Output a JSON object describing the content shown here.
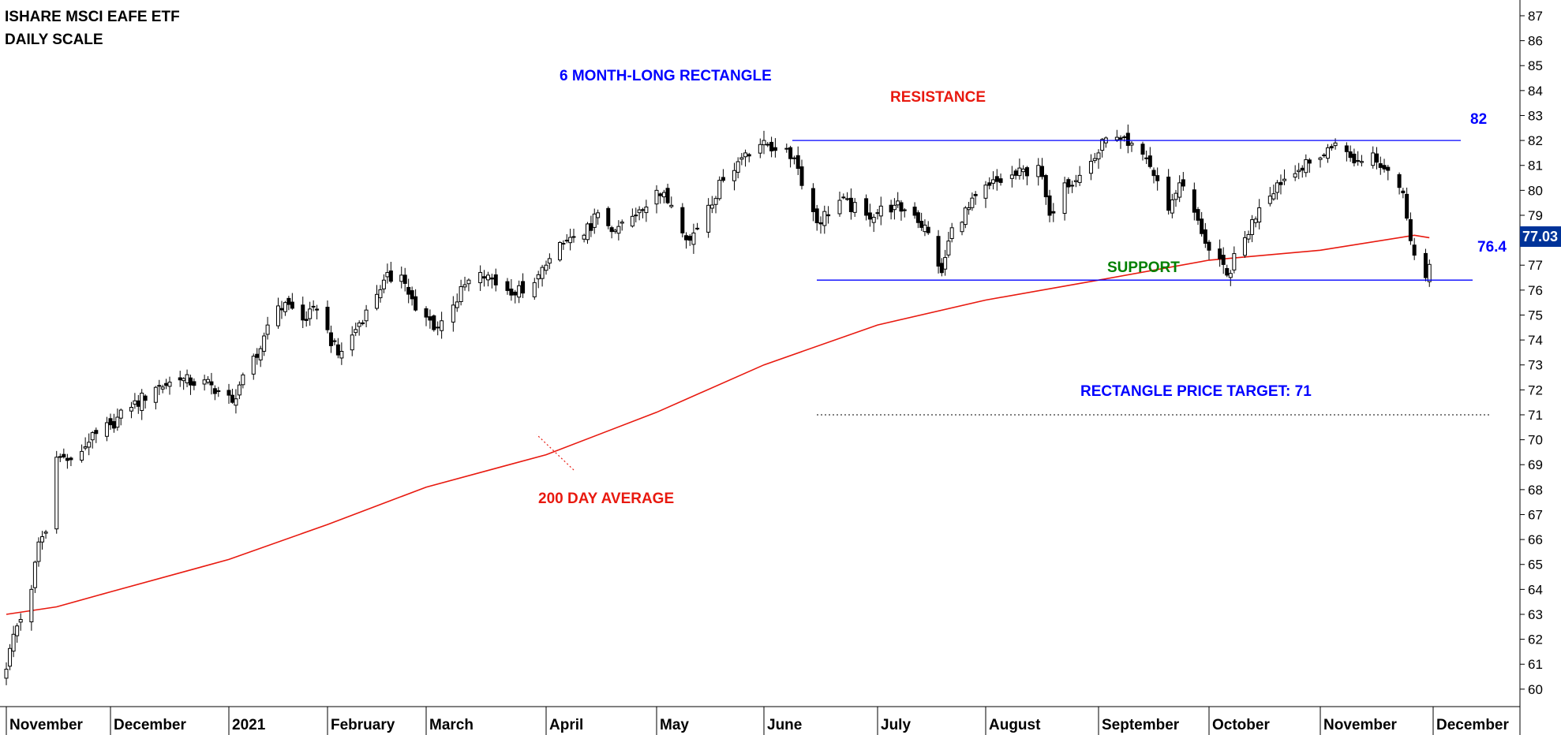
{
  "header": {
    "line1": "ISHARE MSCI EAFE ETF",
    "line2": "DAILY SCALE"
  },
  "annotations": {
    "rectangle": "6 MONTH-LONG RECTANGLE",
    "resistance": "RESISTANCE",
    "support": "SUPPORT",
    "target": "RECTANGLE PRICE TARGET: 71",
    "ma": "200 DAY AVERAGE",
    "resistance_value": "82",
    "support_value": "76.4",
    "last_price": "77.03"
  },
  "colors": {
    "candle": "#000000",
    "ma_line": "#e8190f",
    "levels": "#0000ff",
    "support_text": "#008000",
    "price_tag": "#003399"
  },
  "chart_data": {
    "type": "candlestick",
    "title": "ISHARE MSCI EAFE ETF",
    "subtitle": "DAILY SCALE",
    "ylim": [
      59.3,
      87.6
    ],
    "y_ticks": [
      60,
      61,
      62,
      63,
      64,
      65,
      66,
      67,
      68,
      69,
      70,
      71,
      72,
      73,
      74,
      75,
      76,
      77,
      78,
      79,
      80,
      81,
      82,
      83,
      84,
      85,
      86,
      87
    ],
    "x_tick_labels": [
      "November",
      "December",
      "2021",
      "February",
      "March",
      "April",
      "May",
      "June",
      "July",
      "August",
      "September",
      "October",
      "November",
      "December"
    ],
    "last_price": 77.03,
    "levels": [
      {
        "name": "Resistance",
        "value": 82
      },
      {
        "name": "Support",
        "value": 76.4
      },
      {
        "name": "Rectangle price target",
        "value": 71
      }
    ],
    "series": [
      {
        "name": "200 DAY AVERAGE",
        "type": "line",
        "points": [
          {
            "date": "2020-11-02",
            "value": 63.0
          },
          {
            "date": "2020-11-16",
            "value": 63.3
          },
          {
            "date": "2020-12-01",
            "value": 63.9
          },
          {
            "date": "2021-01-04",
            "value": 65.2
          },
          {
            "date": "2021-02-01",
            "value": 66.6
          },
          {
            "date": "2021-03-01",
            "value": 68.1
          },
          {
            "date": "2021-04-01",
            "value": 69.4
          },
          {
            "date": "2021-05-03",
            "value": 71.1
          },
          {
            "date": "2021-06-01",
            "value": 73.0
          },
          {
            "date": "2021-07-01",
            "value": 74.6
          },
          {
            "date": "2021-08-02",
            "value": 75.6
          },
          {
            "date": "2021-09-01",
            "value": 76.4
          },
          {
            "date": "2021-10-01",
            "value": 77.2
          },
          {
            "date": "2021-11-01",
            "value": 77.6
          },
          {
            "date": "2021-11-26",
            "value": 78.2
          },
          {
            "date": "2021-11-30",
            "value": 78.1
          }
        ]
      },
      {
        "name": "Price (daily close)",
        "type": "candlestick",
        "points": [
          {
            "date": "2020-11-02",
            "close": 60.8
          },
          {
            "date": "2020-11-04",
            "close": 62.2
          },
          {
            "date": "2020-11-09",
            "close": 64.0
          },
          {
            "date": "2020-11-11",
            "close": 65.9
          },
          {
            "date": "2020-11-13",
            "close": 66.3
          },
          {
            "date": "2020-11-16",
            "close": 69.3
          },
          {
            "date": "2020-11-20",
            "close": 69.2
          },
          {
            "date": "2020-11-25",
            "close": 69.9
          },
          {
            "date": "2020-12-01",
            "close": 70.6
          },
          {
            "date": "2020-12-07",
            "close": 71.3
          },
          {
            "date": "2020-12-14",
            "close": 72.1
          },
          {
            "date": "2020-12-21",
            "close": 72.4
          },
          {
            "date": "2020-12-30",
            "close": 72.2
          },
          {
            "date": "2021-01-05",
            "close": 71.5
          },
          {
            "date": "2021-01-08",
            "close": 72.6
          },
          {
            "date": "2021-01-12",
            "close": 73.3
          },
          {
            "date": "2021-01-15",
            "close": 74.6
          },
          {
            "date": "2021-01-20",
            "close": 75.5
          },
          {
            "date": "2021-01-25",
            "close": 74.8
          },
          {
            "date": "2021-01-29",
            "close": 75.2
          },
          {
            "date": "2021-02-04",
            "close": 73.4
          },
          {
            "date": "2021-02-08",
            "close": 74.2
          },
          {
            "date": "2021-02-12",
            "close": 75.2
          },
          {
            "date": "2021-02-17",
            "close": 76.4
          },
          {
            "date": "2021-02-22",
            "close": 76.6
          },
          {
            "date": "2021-02-26",
            "close": 75.2
          },
          {
            "date": "2021-03-04",
            "close": 74.5
          },
          {
            "date": "2021-03-08",
            "close": 75.4
          },
          {
            "date": "2021-03-12",
            "close": 76.4
          },
          {
            "date": "2021-03-17",
            "close": 76.6
          },
          {
            "date": "2021-03-23",
            "close": 75.8
          },
          {
            "date": "2021-03-29",
            "close": 76.3
          },
          {
            "date": "2021-04-01",
            "close": 77.0
          },
          {
            "date": "2021-04-07",
            "close": 78.0
          },
          {
            "date": "2021-04-12",
            "close": 78.2
          },
          {
            "date": "2021-04-16",
            "close": 79.1
          },
          {
            "date": "2021-04-21",
            "close": 78.4
          },
          {
            "date": "2021-04-27",
            "close": 79.0
          },
          {
            "date": "2021-05-03",
            "close": 80.0
          },
          {
            "date": "2021-05-07",
            "close": 79.4
          },
          {
            "date": "2021-05-12",
            "close": 78.0
          },
          {
            "date": "2021-05-17",
            "close": 79.4
          },
          {
            "date": "2021-05-21",
            "close": 80.4
          },
          {
            "date": "2021-05-27",
            "close": 81.5
          },
          {
            "date": "2021-06-01",
            "close": 82.0
          },
          {
            "date": "2021-06-04",
            "close": 81.6
          },
          {
            "date": "2021-06-09",
            "close": 81.3
          },
          {
            "date": "2021-06-15",
            "close": 78.7
          },
          {
            "date": "2021-06-21",
            "close": 79.6
          },
          {
            "date": "2021-06-28",
            "close": 79.0
          },
          {
            "date": "2021-07-06",
            "close": 79.4
          },
          {
            "date": "2021-07-12",
            "close": 79.0
          },
          {
            "date": "2021-07-16",
            "close": 78.3
          },
          {
            "date": "2021-07-20",
            "close": 76.7
          },
          {
            "date": "2021-07-23",
            "close": 78.5
          },
          {
            "date": "2021-07-28",
            "close": 79.3
          },
          {
            "date": "2021-08-03",
            "close": 80.2
          },
          {
            "date": "2021-08-10",
            "close": 80.6
          },
          {
            "date": "2021-08-16",
            "close": 81.0
          },
          {
            "date": "2021-08-19",
            "close": 79.0
          },
          {
            "date": "2021-08-23",
            "close": 80.3
          },
          {
            "date": "2021-08-27",
            "close": 80.6
          },
          {
            "date": "2021-09-01",
            "close": 81.5
          },
          {
            "date": "2021-09-03",
            "close": 82.1
          },
          {
            "date": "2021-09-09",
            "close": 81.8
          },
          {
            "date": "2021-09-14",
            "close": 81.3
          },
          {
            "date": "2021-09-20",
            "close": 79.2
          },
          {
            "date": "2021-09-23",
            "close": 80.3
          },
          {
            "date": "2021-09-28",
            "close": 78.8
          },
          {
            "date": "2021-10-01",
            "close": 77.6
          },
          {
            "date": "2021-10-06",
            "close": 76.6
          },
          {
            "date": "2021-10-11",
            "close": 78.1
          },
          {
            "date": "2021-10-15",
            "close": 79.3
          },
          {
            "date": "2021-10-20",
            "close": 80.3
          },
          {
            "date": "2021-10-26",
            "close": 80.8
          },
          {
            "date": "2021-11-01",
            "close": 81.3
          },
          {
            "date": "2021-11-05",
            "close": 81.9
          },
          {
            "date": "2021-11-10",
            "close": 81.1
          },
          {
            "date": "2021-11-15",
            "close": 81.5
          },
          {
            "date": "2021-11-19",
            "close": 80.8
          },
          {
            "date": "2021-11-23",
            "close": 79.9
          },
          {
            "date": "2021-11-26",
            "close": 77.4
          },
          {
            "date": "2021-11-29",
            "close": 76.5
          },
          {
            "date": "2021-11-30",
            "close": 77.03
          }
        ]
      }
    ]
  }
}
